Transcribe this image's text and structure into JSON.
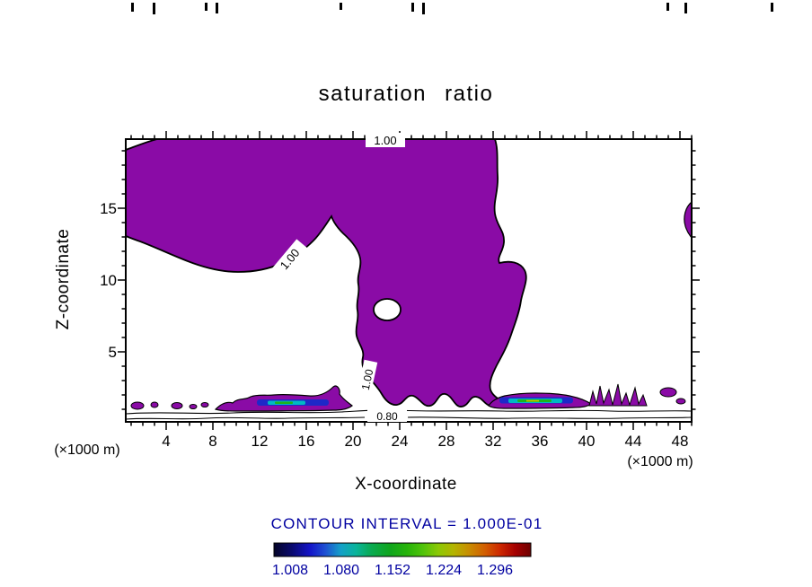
{
  "chart_data": {
    "type": "contour",
    "title": "saturation ratio",
    "xlabel": "X-coordinate",
    "ylabel": "Z-coordinate",
    "x_ticks": [
      "4",
      "8",
      "12",
      "16",
      "20",
      "24",
      "28",
      "32",
      "36",
      "40",
      "44",
      "48"
    ],
    "y_ticks": [
      "5",
      "10",
      "15"
    ],
    "x_minor_tick_step": 1,
    "y_minor_tick_step": 1,
    "x_range": [
      0.5,
      49.0
    ],
    "y_range": [
      0,
      19.8
    ],
    "x_units_label_left": "(×1000 m)",
    "x_units_label_right": "(×1000 m)",
    "contour_interval_text": "CONTOUR INTERVAL = 1.000E-01",
    "contour_interval": 0.1,
    "contour_line_labels": {
      "top": "1.00",
      "slope": "1.00",
      "column": "1.00",
      "surface": "0.80"
    },
    "colorbar": {
      "labels": [
        "1.008",
        "1.080",
        "1.152",
        "1.224",
        "1.296"
      ],
      "gradient": [
        "#050528",
        "#0a0a6e",
        "#1414c8",
        "#1e50d2",
        "#14a0c8",
        "#0ab49b",
        "#0aaa50",
        "#0fa51e",
        "#28b40a",
        "#50c30a",
        "#8cc805",
        "#b4b400",
        "#c88c00",
        "#d25f00",
        "#cd2800",
        "#a50000",
        "#6e0000"
      ]
    },
    "colors": {
      "saturated_fill": "#8a0ba6",
      "band_blue": "#1e28c8",
      "band_cyan": "#00b9c3",
      "band_green": "#1cb41c",
      "band_yellow": "#c8c800",
      "label_blue": "#0000a0",
      "contour_line": "#000000"
    },
    "regions": [
      {
        "name": "saturated-region",
        "level": ">= 1.0",
        "description": "large filled region spanning the upper-left lobe and the central/right column down to the surface"
      },
      {
        "name": "surface-band-west",
        "level": "1.0 - 1.3",
        "x_span": [
          8,
          19
        ],
        "z": "near surface"
      },
      {
        "name": "surface-band-east",
        "level": "1.0 - 1.3",
        "x_span": [
          31,
          45
        ],
        "z": "near surface"
      },
      {
        "name": "subsaturated-surface-layer",
        "levels": [
          "0.90",
          "0.80"
        ],
        "description": "thin contour lines running along the surface across the whole domain"
      }
    ]
  }
}
